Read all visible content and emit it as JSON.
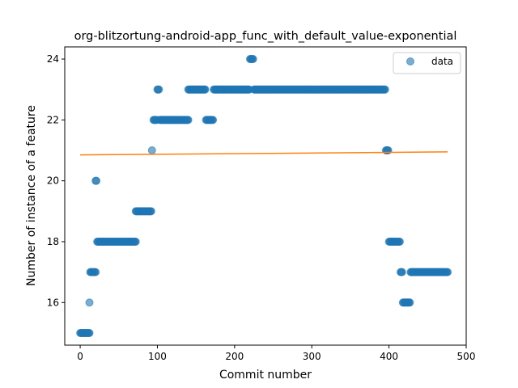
{
  "chart_data": {
    "type": "scatter",
    "title": "org-blitzortung-android-app_func_with_default_value-exponential",
    "xlabel": "Commit number",
    "ylabel": "Number of instance of a feature",
    "xlim": [
      -20,
      500
    ],
    "ylim": [
      14.6,
      24.4
    ],
    "x_ticks": [
      0,
      100,
      200,
      300,
      400,
      500
    ],
    "y_ticks": [
      16,
      18,
      20,
      22,
      24
    ],
    "grid": false,
    "legend": {
      "position": "top-right",
      "entries": [
        "data"
      ]
    },
    "colors": {
      "points": "#1f77b4",
      "fit": "#ff7f0e"
    },
    "series": [
      {
        "name": "data",
        "kind": "scatter",
        "segments": [
          {
            "x_start": 0,
            "x_end": 12,
            "y": 15
          },
          {
            "x_start": 12,
            "x_end": 12,
            "y": 16
          },
          {
            "x_start": 13,
            "x_end": 20,
            "y": 17
          },
          {
            "x_start": 20,
            "x_end": 21,
            "y": 20
          },
          {
            "x_start": 22,
            "x_end": 72,
            "y": 18
          },
          {
            "x_start": 72,
            "x_end": 92,
            "y": 19
          },
          {
            "x_start": 93,
            "x_end": 93,
            "y": 21
          },
          {
            "x_start": 95,
            "x_end": 99,
            "y": 22
          },
          {
            "x_start": 100,
            "x_end": 102,
            "y": 23
          },
          {
            "x_start": 103,
            "x_end": 140,
            "y": 22
          },
          {
            "x_start": 140,
            "x_end": 162,
            "y": 23
          },
          {
            "x_start": 163,
            "x_end": 172,
            "y": 22
          },
          {
            "x_start": 173,
            "x_end": 219,
            "y": 23
          },
          {
            "x_start": 220,
            "x_end": 224,
            "y": 24
          },
          {
            "x_start": 225,
            "x_end": 395,
            "y": 23
          },
          {
            "x_start": 396,
            "x_end": 399,
            "y": 21
          },
          {
            "x_start": 400,
            "x_end": 414,
            "y": 18
          },
          {
            "x_start": 415,
            "x_end": 417,
            "y": 17
          },
          {
            "x_start": 418,
            "x_end": 427,
            "y": 16
          },
          {
            "x_start": 428,
            "x_end": 476,
            "y": 17
          }
        ]
      },
      {
        "kind": "line",
        "x": [
          0,
          476
        ],
        "y": [
          20.85,
          20.95
        ]
      }
    ]
  }
}
